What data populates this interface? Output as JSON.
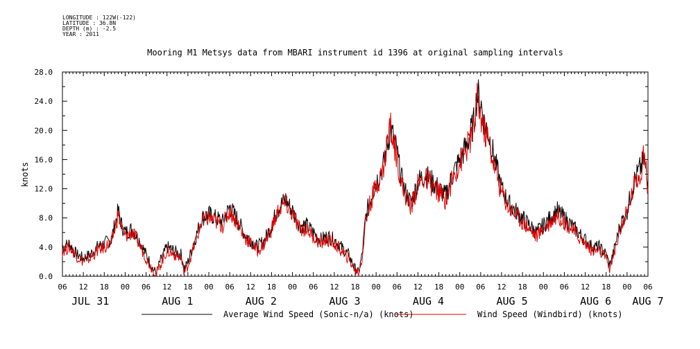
{
  "meta": {
    "longitude": "LONGITUDE : 122W(-122)",
    "latitude": "LATITUDE : 36.8N",
    "depth": "DEPTH (m) : -2.5",
    "year": "YEAR : 2011"
  },
  "chart_data": {
    "type": "line",
    "title": "Mooring M1 Metsys data from MBARI instrument id 1396 at original sampling intervals",
    "ylabel": "knots",
    "ylim": [
      0,
      28
    ],
    "yticks": [
      "0.0",
      "4.0",
      "8.0",
      "12.0",
      "16.0",
      "20.0",
      "24.0",
      "28.0"
    ],
    "xrange_hours": [
      0,
      168
    ],
    "hour_labels": [
      "06",
      "12",
      "18",
      "00",
      "06",
      "12",
      "18",
      "00",
      "06",
      "12",
      "18",
      "00",
      "06",
      "12",
      "18",
      "00",
      "06",
      "12",
      "18",
      "00",
      "06",
      "12",
      "18",
      "00",
      "06",
      "12",
      "18",
      "00",
      "06"
    ],
    "day_labels": [
      {
        "label": "JUL 31",
        "hour": 8
      },
      {
        "label": "AUG  1",
        "hour": 33
      },
      {
        "label": "AUG  2",
        "hour": 57
      },
      {
        "label": "AUG  3",
        "hour": 81
      },
      {
        "label": "AUG  4",
        "hour": 105
      },
      {
        "label": "AUG  5",
        "hour": 129
      },
      {
        "label": "AUG  6",
        "hour": 153
      },
      {
        "label": "AUG  7",
        "hour": 168
      }
    ],
    "legend_placement": "bottom",
    "series": [
      {
        "name": "Average Wind Speed (Sonic-n/a) (knots)",
        "color": "#000000",
        "points": [
          [
            0,
            4
          ],
          [
            2,
            4.5
          ],
          [
            4,
            3
          ],
          [
            6,
            2.5
          ],
          [
            8,
            3
          ],
          [
            10,
            4
          ],
          [
            12,
            4.5
          ],
          [
            14,
            5
          ],
          [
            16,
            9
          ],
          [
            17,
            7
          ],
          [
            18,
            6
          ],
          [
            20,
            6.5
          ],
          [
            22,
            5
          ],
          [
            24,
            3
          ],
          [
            26,
            1
          ],
          [
            27,
            0.5
          ],
          [
            28,
            2
          ],
          [
            30,
            4
          ],
          [
            32,
            3.5
          ],
          [
            34,
            3
          ],
          [
            35,
            1
          ],
          [
            36,
            2
          ],
          [
            38,
            5
          ],
          [
            40,
            8
          ],
          [
            42,
            8.5
          ],
          [
            44,
            8
          ],
          [
            46,
            7.5
          ],
          [
            48,
            9.5
          ],
          [
            50,
            8
          ],
          [
            52,
            6
          ],
          [
            54,
            5
          ],
          [
            56,
            4
          ],
          [
            58,
            5
          ],
          [
            60,
            7
          ],
          [
            62,
            9.5
          ],
          [
            64,
            10.5
          ],
          [
            66,
            9
          ],
          [
            68,
            7
          ],
          [
            70,
            7
          ],
          [
            72,
            6
          ],
          [
            74,
            5
          ],
          [
            76,
            5.5
          ],
          [
            78,
            5
          ],
          [
            80,
            4
          ],
          [
            82,
            3
          ],
          [
            84,
            1
          ],
          [
            85,
            0.5
          ],
          [
            86,
            3
          ],
          [
            87,
            8
          ],
          [
            88,
            10
          ],
          [
            90,
            13
          ],
          [
            92,
            15
          ],
          [
            94,
            20
          ],
          [
            95,
            19
          ],
          [
            96,
            17
          ],
          [
            97,
            14
          ],
          [
            98,
            12
          ],
          [
            99,
            11
          ],
          [
            100,
            10
          ],
          [
            102,
            13
          ],
          [
            104,
            14
          ],
          [
            106,
            13
          ],
          [
            108,
            12
          ],
          [
            110,
            11
          ],
          [
            112,
            14
          ],
          [
            114,
            16
          ],
          [
            116,
            18
          ],
          [
            118,
            21
          ],
          [
            119,
            25
          ],
          [
            120,
            24
          ],
          [
            121,
            21
          ],
          [
            122,
            20
          ],
          [
            124,
            16
          ],
          [
            126,
            12
          ],
          [
            128,
            10
          ],
          [
            130,
            9
          ],
          [
            132,
            8
          ],
          [
            134,
            7
          ],
          [
            136,
            6
          ],
          [
            138,
            7
          ],
          [
            140,
            8
          ],
          [
            142,
            9
          ],
          [
            144,
            8
          ],
          [
            146,
            7
          ],
          [
            148,
            6
          ],
          [
            150,
            5
          ],
          [
            152,
            4
          ],
          [
            154,
            4
          ],
          [
            156,
            3
          ],
          [
            157,
            1.5
          ],
          [
            158,
            3
          ],
          [
            160,
            7
          ],
          [
            162,
            9
          ],
          [
            164,
            13
          ],
          [
            166,
            15
          ],
          [
            167,
            16
          ],
          [
            168,
            12
          ]
        ]
      },
      {
        "name": "Wind Speed (Windbird) (knots)",
        "color": "#e00000",
        "points": [
          [
            0,
            3.5
          ],
          [
            2,
            4
          ],
          [
            4,
            2.8
          ],
          [
            6,
            2
          ],
          [
            8,
            2.5
          ],
          [
            10,
            3.5
          ],
          [
            12,
            4
          ],
          [
            14,
            4.5
          ],
          [
            16,
            8.5
          ],
          [
            17,
            6.5
          ],
          [
            18,
            5.5
          ],
          [
            20,
            6
          ],
          [
            22,
            4.5
          ],
          [
            24,
            2.5
          ],
          [
            26,
            0.8
          ],
          [
            27,
            0.3
          ],
          [
            28,
            1.5
          ],
          [
            30,
            3.5
          ],
          [
            32,
            3
          ],
          [
            34,
            2.5
          ],
          [
            35,
            0.5
          ],
          [
            36,
            1.5
          ],
          [
            38,
            4.5
          ],
          [
            40,
            7.5
          ],
          [
            42,
            8
          ],
          [
            44,
            7.5
          ],
          [
            46,
            7
          ],
          [
            48,
            9
          ],
          [
            50,
            7.5
          ],
          [
            52,
            5.5
          ],
          [
            54,
            4.5
          ],
          [
            56,
            3.5
          ],
          [
            58,
            4.5
          ],
          [
            60,
            6.5
          ],
          [
            62,
            9
          ],
          [
            64,
            10
          ],
          [
            66,
            8.5
          ],
          [
            68,
            6.5
          ],
          [
            70,
            6.5
          ],
          [
            72,
            5.5
          ],
          [
            74,
            4.5
          ],
          [
            76,
            5
          ],
          [
            78,
            4.5
          ],
          [
            80,
            3.5
          ],
          [
            82,
            2.5
          ],
          [
            84,
            0.8
          ],
          [
            85,
            0.5
          ],
          [
            86,
            2.5
          ],
          [
            87,
            7.5
          ],
          [
            88,
            9.5
          ],
          [
            90,
            12.5
          ],
          [
            92,
            14.5
          ],
          [
            94,
            21
          ],
          [
            95,
            18.5
          ],
          [
            96,
            16.5
          ],
          [
            97,
            13.5
          ],
          [
            98,
            11.5
          ],
          [
            99,
            10.5
          ],
          [
            100,
            9.5
          ],
          [
            102,
            12.5
          ],
          [
            104,
            13.5
          ],
          [
            106,
            12.5
          ],
          [
            108,
            11.5
          ],
          [
            110,
            10.5
          ],
          [
            112,
            13.5
          ],
          [
            114,
            15.5
          ],
          [
            116,
            17.5
          ],
          [
            118,
            20
          ],
          [
            119,
            24
          ],
          [
            120,
            22
          ],
          [
            121,
            20
          ],
          [
            122,
            19
          ],
          [
            124,
            15
          ],
          [
            126,
            11.5
          ],
          [
            128,
            9.5
          ],
          [
            130,
            8.5
          ],
          [
            132,
            7.5
          ],
          [
            134,
            6.5
          ],
          [
            136,
            5.5
          ],
          [
            138,
            6.5
          ],
          [
            140,
            7.5
          ],
          [
            142,
            8.5
          ],
          [
            144,
            7.5
          ],
          [
            146,
            6.5
          ],
          [
            148,
            5.5
          ],
          [
            150,
            4.5
          ],
          [
            152,
            3.5
          ],
          [
            154,
            3.5
          ],
          [
            156,
            2.5
          ],
          [
            157,
            1
          ],
          [
            158,
            2.5
          ],
          [
            160,
            6.5
          ],
          [
            162,
            8.5
          ],
          [
            164,
            12.5
          ],
          [
            166,
            14.5
          ],
          [
            167,
            17
          ],
          [
            168,
            12
          ]
        ]
      }
    ]
  }
}
